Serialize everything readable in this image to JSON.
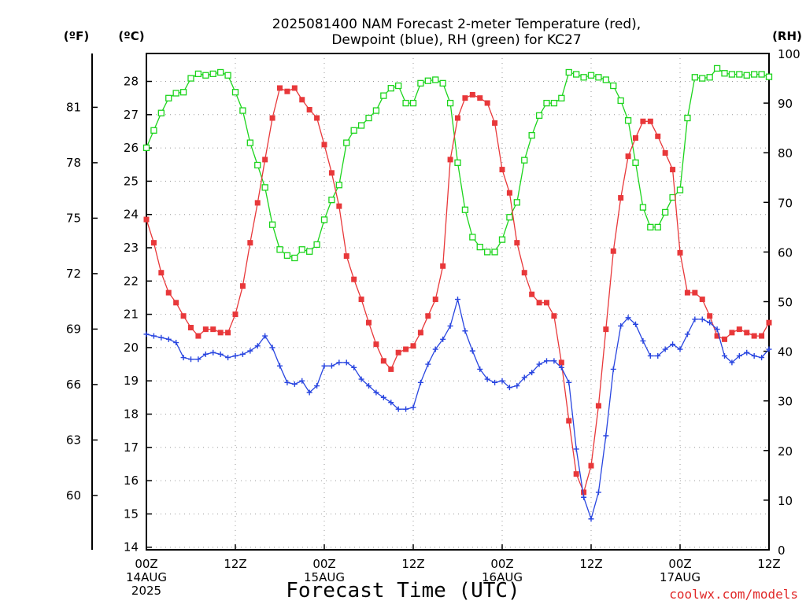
{
  "chart_data": {
    "type": "line",
    "title": [
      "2025081400 NAM Forecast 2-meter Temperature (red),",
      "Dewpoint (blue), RH (green) for KC27"
    ],
    "xlabel": "Forecast Time (UTC)",
    "credit": "coolwx.com/models",
    "units": {
      "fahrenheit": "(ºF)",
      "celsius": "(ºC)",
      "rh": "(RH)"
    },
    "x_hours_range": [
      0,
      84
    ],
    "celsius_range": [
      14,
      28.9
    ],
    "rh_range": [
      0,
      100
    ],
    "x_ticks": [
      {
        "h": 0,
        "lines": [
          "00Z",
          "14AUG",
          "2025"
        ]
      },
      {
        "h": 12,
        "lines": [
          "12Z"
        ]
      },
      {
        "h": 24,
        "lines": [
          "00Z",
          "15AUG"
        ]
      },
      {
        "h": 36,
        "lines": [
          "12Z"
        ]
      },
      {
        "h": 48,
        "lines": [
          "00Z",
          "16AUG"
        ]
      },
      {
        "h": 60,
        "lines": [
          "12Z"
        ]
      },
      {
        "h": 72,
        "lines": [
          "00Z",
          "17AUG"
        ]
      },
      {
        "h": 84,
        "lines": [
          "12Z"
        ]
      }
    ],
    "celsius_ticks": [
      "14",
      "15",
      "16",
      "17",
      "18",
      "19",
      "20",
      "21",
      "22",
      "23",
      "24",
      "25",
      "26",
      "27",
      "28"
    ],
    "fahrenheit_ticks": [
      "60",
      "63",
      "66",
      "69",
      "72",
      "75",
      "78",
      "81"
    ],
    "rh_ticks": [
      "0",
      "10",
      "20",
      "30",
      "40",
      "50",
      "60",
      "70",
      "80",
      "90",
      "100"
    ],
    "colors": {
      "temperature": "#e8383a",
      "dewpoint": "#2845e0",
      "rh": "#1cd41c",
      "grid": "#9a9a9a",
      "credit": "#e02828"
    },
    "series": [
      {
        "key": "temperature",
        "marker": "filled-square",
        "x": [
          0,
          1,
          2,
          3,
          4,
          5,
          6,
          7,
          8,
          9,
          10,
          11,
          12,
          13,
          14,
          15,
          16,
          17,
          18,
          19,
          20,
          21,
          22,
          23,
          24,
          25,
          26,
          27,
          28,
          29,
          30,
          31,
          32,
          33,
          34,
          35,
          36,
          37,
          38,
          39,
          40,
          41,
          42,
          43,
          44,
          45,
          46,
          47,
          48,
          49,
          50,
          51,
          52,
          53,
          54,
          55,
          56,
          57,
          58,
          59,
          60,
          61,
          62,
          63,
          64,
          65,
          66,
          67,
          68,
          69,
          70,
          71,
          72,
          73,
          74,
          75,
          76,
          77,
          78,
          79,
          80,
          81,
          82,
          83,
          84
        ],
        "y": [
          23.85,
          23.15,
          22.25,
          21.65,
          21.35,
          20.95,
          20.6,
          20.35,
          20.55,
          20.55,
          20.45,
          20.45,
          21.0,
          21.85,
          23.15,
          24.35,
          25.65,
          26.9,
          27.8,
          27.7,
          27.8,
          27.45,
          27.15,
          26.9,
          26.1,
          25.25,
          24.25,
          22.75,
          22.05,
          21.45,
          20.75,
          20.1,
          19.6,
          19.35,
          19.85,
          19.95,
          20.05,
          20.45,
          20.95,
          21.45,
          22.45,
          25.65,
          26.9,
          27.5,
          27.6,
          27.5,
          27.35,
          26.75,
          25.35,
          24.65,
          23.15,
          22.25,
          21.6,
          21.35,
          21.35,
          20.95,
          19.55,
          17.8,
          16.2,
          15.65,
          16.45,
          18.25,
          20.55,
          22.9,
          24.5,
          25.75,
          26.3,
          26.8,
          26.8,
          26.35,
          25.85,
          25.35,
          22.85,
          21.65,
          21.65,
          21.45,
          20.95,
          20.35,
          20.25,
          20.45,
          20.55,
          20.45,
          20.35,
          20.35,
          20.75
        ]
      },
      {
        "key": "dewpoint",
        "marker": "plus",
        "x": [
          0,
          1,
          2,
          3,
          4,
          5,
          6,
          7,
          8,
          9,
          10,
          11,
          12,
          13,
          14,
          15,
          16,
          17,
          18,
          19,
          20,
          21,
          22,
          23,
          24,
          25,
          26,
          27,
          28,
          29,
          30,
          31,
          32,
          33,
          34,
          35,
          36,
          37,
          38,
          39,
          40,
          41,
          42,
          43,
          44,
          45,
          46,
          47,
          48,
          49,
          50,
          51,
          52,
          53,
          54,
          55,
          56,
          57,
          58,
          59,
          60,
          61,
          62,
          63,
          64,
          65,
          66,
          67,
          68,
          69,
          70,
          71,
          72,
          73,
          74,
          75,
          76,
          77,
          78,
          79,
          80,
          81,
          82,
          83,
          84
        ],
        "y": [
          20.4,
          20.35,
          20.3,
          20.25,
          20.15,
          19.7,
          19.65,
          19.65,
          19.8,
          19.85,
          19.8,
          19.7,
          19.75,
          19.8,
          19.9,
          20.05,
          20.35,
          20.0,
          19.45,
          18.95,
          18.9,
          19.0,
          18.65,
          18.85,
          19.45,
          19.45,
          19.55,
          19.55,
          19.4,
          19.05,
          18.85,
          18.65,
          18.5,
          18.35,
          18.15,
          18.15,
          18.2,
          18.95,
          19.5,
          19.95,
          20.25,
          20.65,
          21.45,
          20.5,
          19.9,
          19.35,
          19.05,
          18.95,
          19.0,
          18.8,
          18.85,
          19.1,
          19.25,
          19.5,
          19.6,
          19.6,
          19.4,
          18.95,
          16.95,
          15.5,
          14.85,
          15.65,
          17.35,
          19.35,
          20.65,
          20.9,
          20.7,
          20.2,
          19.75,
          19.75,
          19.95,
          20.1,
          19.95,
          20.4,
          20.85,
          20.85,
          20.75,
          20.55,
          19.75,
          19.55,
          19.75,
          19.85,
          19.75,
          19.7,
          19.95
        ]
      },
      {
        "key": "rh",
        "marker": "open-square",
        "x": [
          0,
          1,
          2,
          3,
          4,
          5,
          6,
          7,
          8,
          9,
          10,
          11,
          12,
          13,
          14,
          15,
          16,
          17,
          18,
          19,
          20,
          21,
          22,
          23,
          24,
          25,
          26,
          27,
          28,
          29,
          30,
          31,
          32,
          33,
          34,
          35,
          36,
          37,
          38,
          39,
          40,
          41,
          42,
          43,
          44,
          45,
          46,
          47,
          48,
          49,
          50,
          51,
          52,
          53,
          54,
          55,
          56,
          57,
          58,
          59,
          60,
          61,
          62,
          63,
          64,
          65,
          66,
          67,
          68,
          69,
          70,
          71,
          72,
          73,
          74,
          75,
          76,
          77,
          78,
          79,
          80,
          81,
          82,
          83,
          84
        ],
        "y": [
          81,
          84.5,
          88,
          91,
          92,
          92.2,
          95,
          95.9,
          95.6,
          95.9,
          96.2,
          95.6,
          92.2,
          88.5,
          82,
          77.5,
          73,
          65.5,
          60.5,
          59.3,
          58.8,
          60.5,
          60.1,
          61.5,
          66.5,
          70.5,
          73.5,
          82,
          84.5,
          85.5,
          87,
          88.5,
          91.5,
          93,
          93.5,
          90,
          90,
          94,
          94.5,
          94.7,
          94,
          90,
          78,
          68.5,
          63,
          61,
          60,
          60,
          62.5,
          67,
          70,
          78.5,
          83.5,
          87.5,
          90,
          90,
          91,
          96.2,
          95.8,
          95.2,
          95.6,
          95.2,
          94.7,
          93.5,
          90.5,
          86.5,
          78,
          69,
          65,
          65,
          68,
          71,
          72.5,
          87,
          95.2,
          95,
          95.2,
          97,
          96,
          95.8,
          95.8,
          95.6,
          95.8,
          95.8,
          95.3
        ]
      }
    ]
  }
}
